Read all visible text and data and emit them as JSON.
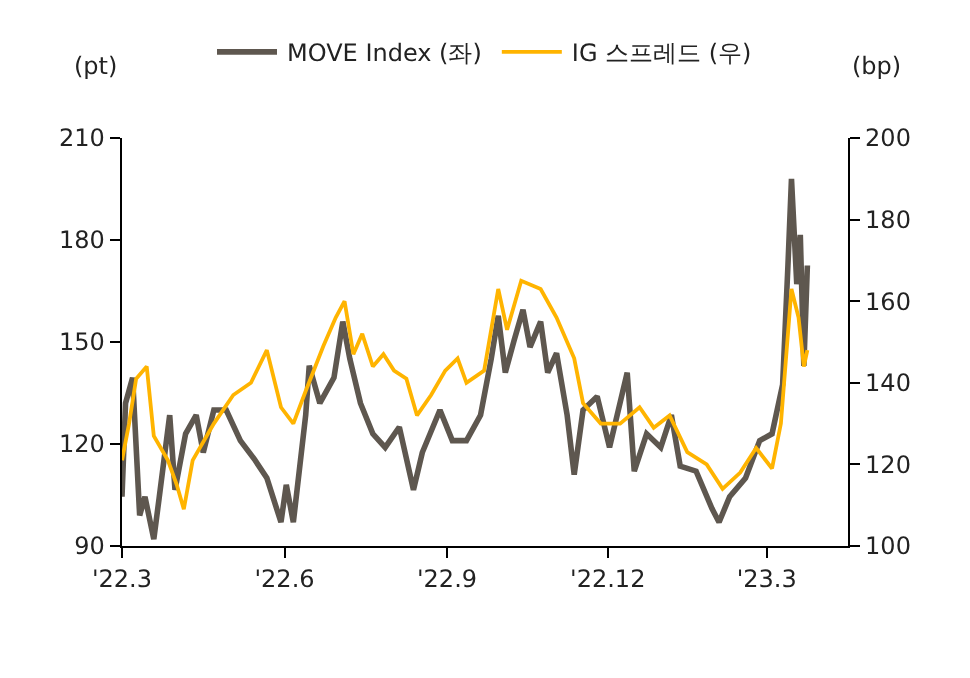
{
  "chart_data": {
    "type": "line",
    "ylabel": "(pt)",
    "y2label": "(bp)",
    "xlim": [
      "2022-03-01",
      "2023-04-16"
    ],
    "xticks": [
      {
        "value": "2022-03-01",
        "label": "'22.3"
      },
      {
        "value": "2022-06-01",
        "label": "'22.6"
      },
      {
        "value": "2022-09-01",
        "label": "'22.9"
      },
      {
        "value": "2022-12-01",
        "label": "'22.12"
      },
      {
        "value": "2023-03-01",
        "label": "'23.3"
      }
    ],
    "ylim": [
      90,
      210
    ],
    "yticks": [
      90,
      120,
      150,
      180,
      210
    ],
    "y2lim": [
      100,
      200
    ],
    "y2ticks": [
      100,
      120,
      140,
      160,
      180,
      200
    ],
    "legend": "top",
    "line_style": "solid",
    "series": [
      {
        "name": "MOVE Index (좌)",
        "color": "#5e574f",
        "x": [
          "2022-03-01",
          "2022-03-03",
          "2022-03-07",
          "2022-03-11",
          "2022-03-14",
          "2022-03-19",
          "2022-03-22",
          "2022-03-28",
          "2022-03-31",
          "2022-04-06",
          "2022-04-12",
          "2022-04-16",
          "2022-04-22",
          "2022-04-29",
          "2022-05-07",
          "2022-05-15",
          "2022-05-22",
          "2022-05-30",
          "2022-06-02",
          "2022-06-06",
          "2022-06-13",
          "2022-06-15",
          "2022-06-21",
          "2022-06-29",
          "2022-07-04",
          "2022-07-08",
          "2022-07-14",
          "2022-07-21",
          "2022-07-28",
          "2022-08-05",
          "2022-08-13",
          "2022-08-18",
          "2022-08-28",
          "2022-09-04",
          "2022-09-12",
          "2022-09-20",
          "2022-09-26",
          "2022-09-30",
          "2022-10-04",
          "2022-10-09",
          "2022-10-14",
          "2022-10-18",
          "2022-10-24",
          "2022-10-28",
          "2022-11-02",
          "2022-11-08",
          "2022-11-12",
          "2022-11-17",
          "2022-11-25",
          "2022-12-02",
          "2022-12-12",
          "2022-12-16",
          "2022-12-23",
          "2022-12-31",
          "2023-01-06",
          "2023-01-11",
          "2023-01-20",
          "2023-01-29",
          "2023-02-02",
          "2023-02-08",
          "2023-02-17",
          "2023-02-25",
          "2023-03-04",
          "2023-03-10",
          "2023-03-13",
          "2023-03-15",
          "2023-03-18",
          "2023-03-20",
          "2023-03-22",
          "2023-03-24"
        ],
        "values": [
          104.5,
          132,
          139.5,
          99,
          104.5,
          92,
          104,
          128.5,
          106.5,
          123,
          128.5,
          117.5,
          130,
          130,
          121,
          115.5,
          110,
          97,
          108,
          97,
          128.5,
          143,
          132,
          139.5,
          156,
          145,
          132,
          123,
          119,
          125,
          106.5,
          117.5,
          130,
          121,
          121,
          128.5,
          145,
          157.7,
          141,
          150.5,
          159.5,
          148.5,
          156,
          141,
          146.7,
          128.5,
          111,
          130,
          134,
          119,
          141,
          112,
          123,
          119,
          128.5,
          113.5,
          112,
          101,
          97,
          104.5,
          110,
          121,
          123,
          137.5,
          172.5,
          198,
          167,
          181.5,
          143,
          172.5
        ]
      },
      {
        "name": "IG 스프레드 (우)",
        "color": "#ffb400",
        "axis": "y2",
        "x": [
          "2022-03-01",
          "2022-03-05",
          "2022-03-09",
          "2022-03-15",
          "2022-03-19",
          "2022-03-27",
          "2022-04-01",
          "2022-04-05",
          "2022-04-10",
          "2022-04-22",
          "2022-05-03",
          "2022-05-13",
          "2022-05-22",
          "2022-05-30",
          "2022-06-06",
          "2022-06-13",
          "2022-06-23",
          "2022-06-30",
          "2022-07-05",
          "2022-07-10",
          "2022-07-15",
          "2022-07-21",
          "2022-07-27",
          "2022-08-02",
          "2022-08-09",
          "2022-08-15",
          "2022-08-23",
          "2022-08-31",
          "2022-09-07",
          "2022-09-12",
          "2022-09-22",
          "2022-09-30",
          "2022-10-05",
          "2022-10-13",
          "2022-10-24",
          "2022-11-02",
          "2022-11-12",
          "2022-11-17",
          "2022-11-27",
          "2022-12-08",
          "2022-12-19",
          "2022-12-27",
          "2023-01-05",
          "2023-01-15",
          "2023-01-26",
          "2023-02-04",
          "2023-02-14",
          "2023-02-23",
          "2023-03-04",
          "2023-03-09",
          "2023-03-15",
          "2023-03-19",
          "2023-03-22",
          "2023-03-24"
        ],
        "values": [
          121,
          130,
          141,
          144,
          127,
          121,
          115,
          109,
          121,
          130,
          137,
          140,
          148,
          134,
          130,
          138,
          149,
          156,
          160,
          147,
          152,
          144,
          147,
          143,
          141,
          132,
          137,
          143,
          146,
          140,
          143,
          163,
          153,
          165,
          163,
          156,
          146,
          135,
          130,
          130,
          134,
          129,
          132,
          123,
          120,
          114,
          118,
          124,
          119,
          130,
          163,
          156,
          144,
          148
        ]
      }
    ]
  }
}
